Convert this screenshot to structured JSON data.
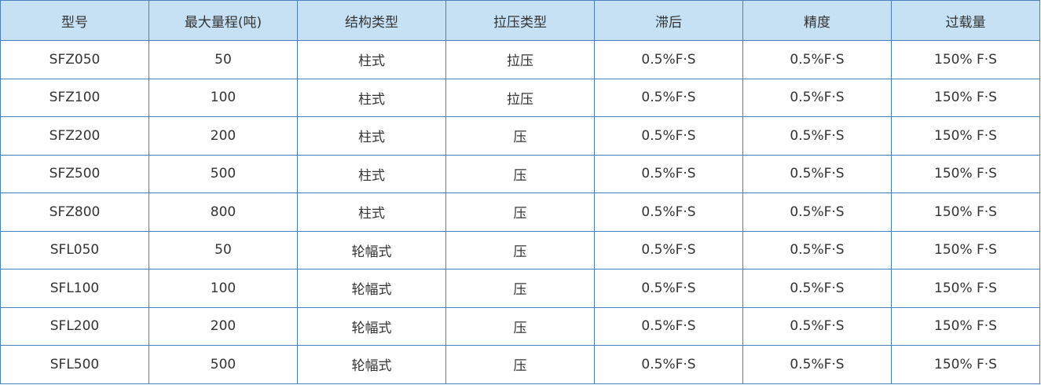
{
  "colors": {
    "header_bg": "#c6e1f4",
    "border": "#4a7fc0"
  },
  "table": {
    "headers": [
      "型号",
      "最大量程(吨)",
      "结构类型",
      "拉压类型",
      "滞后",
      "精度",
      "过载量"
    ],
    "rows": [
      [
        "SFZ050",
        "50",
        "柱式",
        "拉压",
        "0.5%F·S",
        "0.5%F·S",
        "150% F·S"
      ],
      [
        "SFZ100",
        "100",
        "柱式",
        "拉压",
        "0.5%F·S",
        "0.5%F·S",
        "150% F·S"
      ],
      [
        "SFZ200",
        "200",
        "柱式",
        "压",
        "0.5%F·S",
        "0.5%F·S",
        "150% F·S"
      ],
      [
        "SFZ500",
        "500",
        "柱式",
        "压",
        "0.5%F·S",
        "0.5%F·S",
        "150% F·S"
      ],
      [
        "SFZ800",
        "800",
        "柱式",
        "压",
        "0.5%F·S",
        "0.5%F·S",
        "150% F·S"
      ],
      [
        "SFL050",
        "50",
        "轮幅式",
        "压",
        "0.5%F·S",
        "0.5%F·S",
        "150% F·S"
      ],
      [
        "SFL100",
        "100",
        "轮幅式",
        "压",
        "0.5%F·S",
        "0.5%F·S",
        "150% F·S"
      ],
      [
        "SFL200",
        "200",
        "轮幅式",
        "压",
        "0.5%F·S",
        "0.5%F·S",
        "150% F·S"
      ],
      [
        "SFL500",
        "500",
        "轮幅式",
        "压",
        "0.5%F·S",
        "0.5%F·S",
        "150% F·S"
      ]
    ]
  }
}
